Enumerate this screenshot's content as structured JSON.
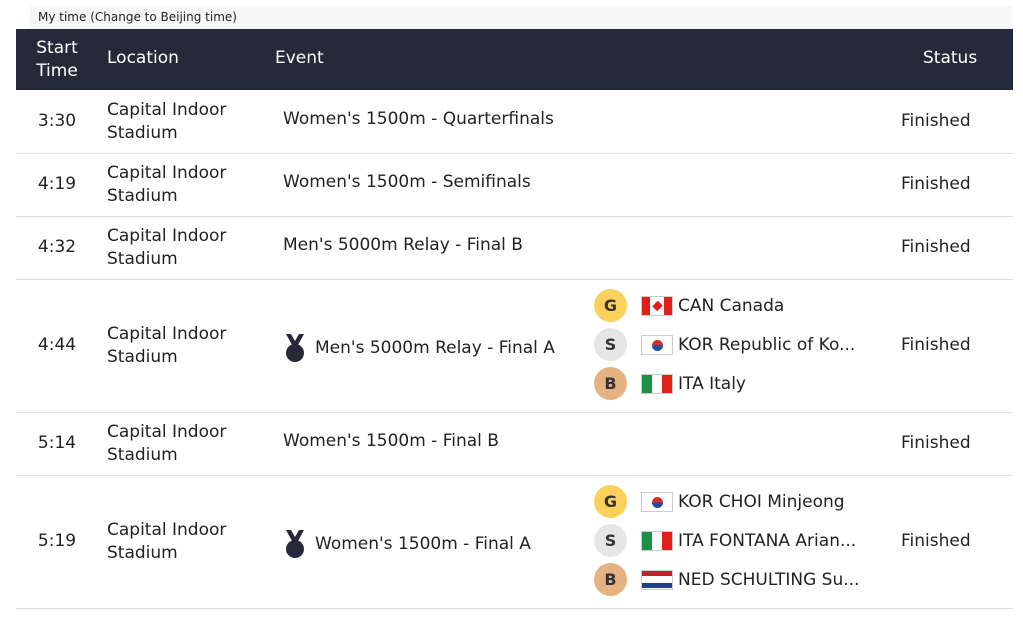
{
  "time_toggle": "My time (Change to Beijing time)",
  "header": {
    "start_time": "Start Time",
    "location": "Location",
    "event": "Event",
    "status": "Status"
  },
  "colors": {
    "header_bg": "#262a38",
    "gold": "#fbd15b",
    "silver": "#e6e6e6",
    "bronze": "#e5b282"
  },
  "rows": [
    {
      "time": "3:30",
      "location": "Capital Indoor Stadium",
      "event": "Women's 1500m - Quarterfinals",
      "status": "Finished"
    },
    {
      "time": "4:19",
      "location": "Capital Indoor Stadium",
      "event": "Women's 1500m - Semifinals",
      "status": "Finished"
    },
    {
      "time": "4:32",
      "location": "Capital Indoor Stadium",
      "event": "Men's 5000m Relay - Final B",
      "status": "Finished"
    },
    {
      "time": "4:44",
      "location": "Capital Indoor Stadium",
      "event": "Men's 5000m Relay - Final A",
      "status": "Finished",
      "icon": "medal-icon",
      "medals": [
        {
          "badge": "G",
          "flag": "canada",
          "text": "CAN Canada"
        },
        {
          "badge": "S",
          "flag": "korea",
          "text": "KOR Republic of Ko..."
        },
        {
          "badge": "B",
          "flag": "italy",
          "text": "ITA Italy"
        }
      ]
    },
    {
      "time": "5:14",
      "location": "Capital Indoor Stadium",
      "event": "Women's 1500m - Final B",
      "status": "Finished"
    },
    {
      "time": "5:19",
      "location": "Capital Indoor Stadium",
      "event": "Women's 1500m - Final A",
      "status": "Finished",
      "icon": "medal-icon",
      "medals": [
        {
          "badge": "G",
          "flag": "korea",
          "text": "KOR CHOI Minjeong"
        },
        {
          "badge": "S",
          "flag": "italy",
          "text": "ITA FONTANA Arian..."
        },
        {
          "badge": "B",
          "flag": "netherlands",
          "text": "NED SCHULTING Su..."
        }
      ]
    }
  ]
}
